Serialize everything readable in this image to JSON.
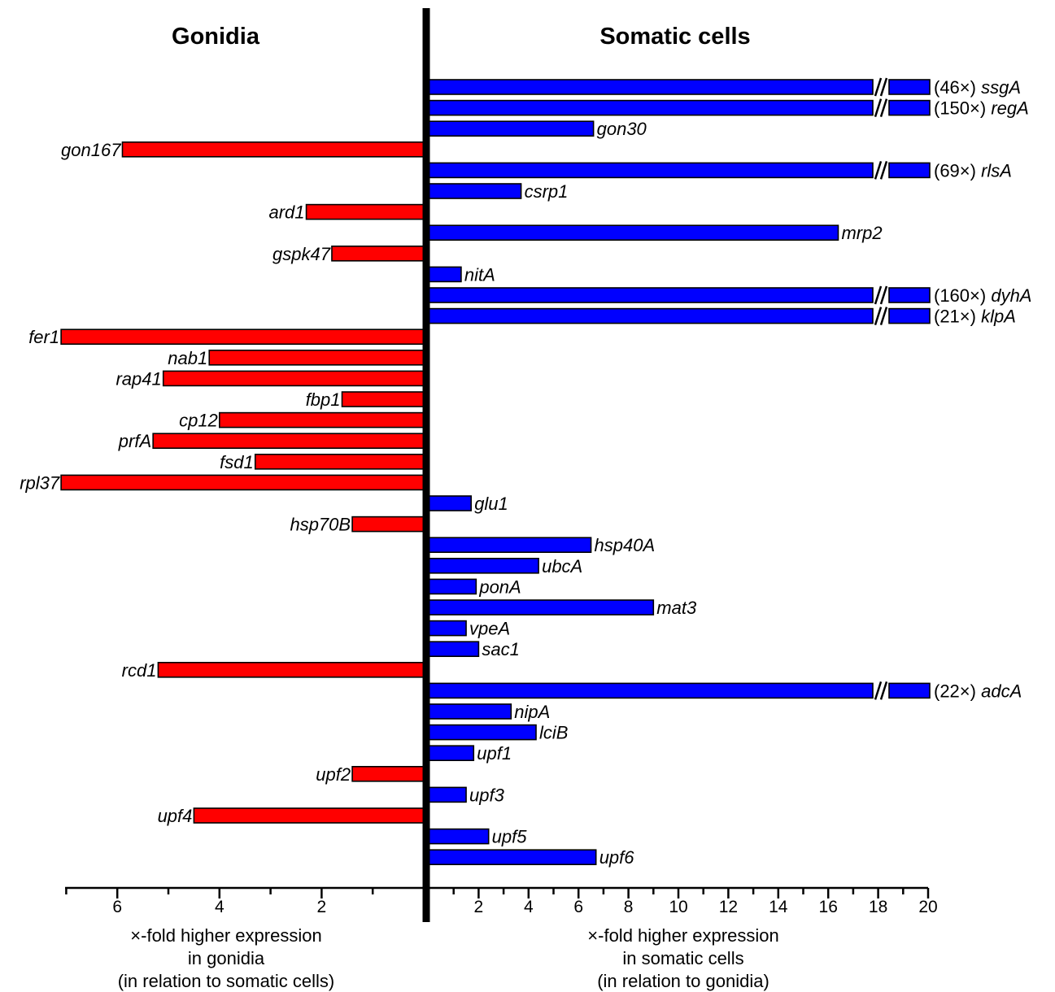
{
  "chart_data": {
    "type": "bar",
    "orientation": "horizontal-diverging",
    "left_title": "Gonidia",
    "right_title": "Somatic cells",
    "left_xlabel": [
      "×-fold higher expression",
      "in gonidia",
      "(in relation to somatic cells)"
    ],
    "right_xlabel": [
      "×-fold higher expression",
      "in somatic cells",
      "(in relation to gonidia)"
    ],
    "left_ticks": [
      "6",
      "4",
      "2"
    ],
    "right_ticks": [
      "2",
      "4",
      "6",
      "8",
      "10",
      "12",
      "14",
      "16",
      "18",
      "20"
    ],
    "left_xlim": [
      0,
      7.2
    ],
    "right_xlim": [
      0,
      20
    ],
    "colors": {
      "gonidia": "#ff0000",
      "somatic": "#0000ff",
      "axis": "#000000"
    },
    "series": [
      {
        "name": "Gonidia",
        "side": "left"
      },
      {
        "name": "Somatic cells",
        "side": "right"
      }
    ],
    "rows": [
      {
        "gene": "ssgA",
        "side": "right",
        "value": 46,
        "broken": true,
        "note": "(46×)"
      },
      {
        "gene": "regA",
        "side": "right",
        "value": 150,
        "broken": true,
        "note": "(150×)"
      },
      {
        "gene": "gon30",
        "side": "right",
        "value": 6.6
      },
      {
        "gene": "gon167",
        "side": "left",
        "value": 5.9
      },
      {
        "gene": "rlsA",
        "side": "right",
        "value": 69,
        "broken": true,
        "note": "(69×)"
      },
      {
        "gene": "csrp1",
        "side": "right",
        "value": 3.7
      },
      {
        "gene": "ard1",
        "side": "left",
        "value": 2.3
      },
      {
        "gene": "mrp2",
        "side": "right",
        "value": 16.4
      },
      {
        "gene": "gspk47",
        "side": "left",
        "value": 1.8
      },
      {
        "gene": "nitA",
        "side": "right",
        "value": 1.3
      },
      {
        "gene": "dyhA",
        "side": "right",
        "value": 160,
        "broken": true,
        "note": "(160×)"
      },
      {
        "gene": "klpA",
        "side": "right",
        "value": 21,
        "broken": true,
        "note": "(21×)"
      },
      {
        "gene": "fer1",
        "side": "left",
        "value": 7.1
      },
      {
        "gene": "nab1",
        "side": "left",
        "value": 4.2
      },
      {
        "gene": "rap41",
        "side": "left",
        "value": 5.1
      },
      {
        "gene": "fbp1",
        "side": "left",
        "value": 1.6
      },
      {
        "gene": "cp12",
        "side": "left",
        "value": 4.0
      },
      {
        "gene": "prfA",
        "side": "left",
        "value": 5.3
      },
      {
        "gene": "fsd1",
        "side": "left",
        "value": 3.3
      },
      {
        "gene": "rpl37",
        "side": "left",
        "value": 7.1
      },
      {
        "gene": "glu1",
        "side": "right",
        "value": 1.7
      },
      {
        "gene": "hsp70B",
        "side": "left",
        "value": 1.4
      },
      {
        "gene": "hsp40A",
        "side": "right",
        "value": 6.5
      },
      {
        "gene": "ubcA",
        "side": "right",
        "value": 4.4
      },
      {
        "gene": "ponA",
        "side": "right",
        "value": 1.9
      },
      {
        "gene": "mat3",
        "side": "right",
        "value": 9.0
      },
      {
        "gene": "vpeA",
        "side": "right",
        "value": 1.5
      },
      {
        "gene": "sac1",
        "side": "right",
        "value": 2.0
      },
      {
        "gene": "rcd1",
        "side": "left",
        "value": 5.2
      },
      {
        "gene": "adcA",
        "side": "right",
        "value": 22,
        "broken": true,
        "note": "(22×)"
      },
      {
        "gene": "nipA",
        "side": "right",
        "value": 3.3
      },
      {
        "gene": "lciB",
        "side": "right",
        "value": 4.3
      },
      {
        "gene": "upf1",
        "side": "right",
        "value": 1.8
      },
      {
        "gene": "upf2",
        "side": "left",
        "value": 1.4
      },
      {
        "gene": "upf3",
        "side": "right",
        "value": 1.5
      },
      {
        "gene": "upf4",
        "side": "left",
        "value": 4.5
      },
      {
        "gene": "upf5",
        "side": "right",
        "value": 2.4
      },
      {
        "gene": "upf6",
        "side": "right",
        "value": 6.7
      }
    ]
  }
}
